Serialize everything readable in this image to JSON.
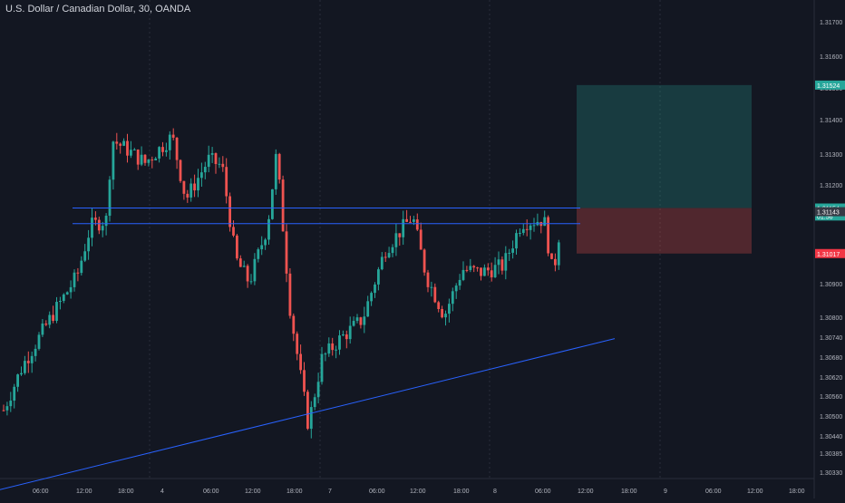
{
  "header": {
    "title": "U.S. Dollar / Canadian Dollar, 30, OANDA"
  },
  "chart_data": {
    "type": "candlestick",
    "ylim": [
      1.3028,
      1.3178
    ],
    "price_ticks": [
      "1.31700",
      "1.31600",
      "1.31500",
      "1.31400",
      "1.31300",
      "1.31200",
      "1.31000",
      "1.30900",
      "1.30800",
      "1.30740",
      "1.30680",
      "1.30620",
      "1.30560",
      "1.30500",
      "1.30440",
      "1.30385",
      "1.30330"
    ],
    "time_ticks": [
      "06:00",
      "12:00",
      "18:00",
      "4",
      "06:00",
      "12:00",
      "18:00",
      "7",
      "06:00",
      "12:00",
      "18:00",
      "8",
      "06:00",
      "12:00",
      "18:00",
      "9",
      "06:00",
      "12:00",
      "18:00"
    ],
    "price_labels": [
      {
        "value": 1.31524,
        "text": "1.31524",
        "color": "#26a69a"
      },
      {
        "value": 1.31154,
        "text": "1.31154",
        "color": "#26a69a"
      },
      {
        "value": 1.3113,
        "text": "01:56",
        "color": "#26a69a"
      },
      {
        "value": 1.31143,
        "text": "1.31143",
        "color": "#363a45"
      },
      {
        "value": 1.31017,
        "text": "1.31017",
        "color": "#f23645"
      }
    ],
    "levels": [
      1.31154,
      1.31107
    ],
    "trendline": {
      "from": [
        -10,
        1.303
      ],
      "to": [
        678,
        1.30761
      ]
    },
    "position": {
      "entry": 1.31154,
      "target": 1.31524,
      "stop": 1.31017
    },
    "colors": {
      "up": "#26a69a",
      "down": "#ef5350",
      "line": "#2962ff",
      "bg": "#131722",
      "grid": "#1e222d",
      "text": "#b2b5be"
    }
  }
}
